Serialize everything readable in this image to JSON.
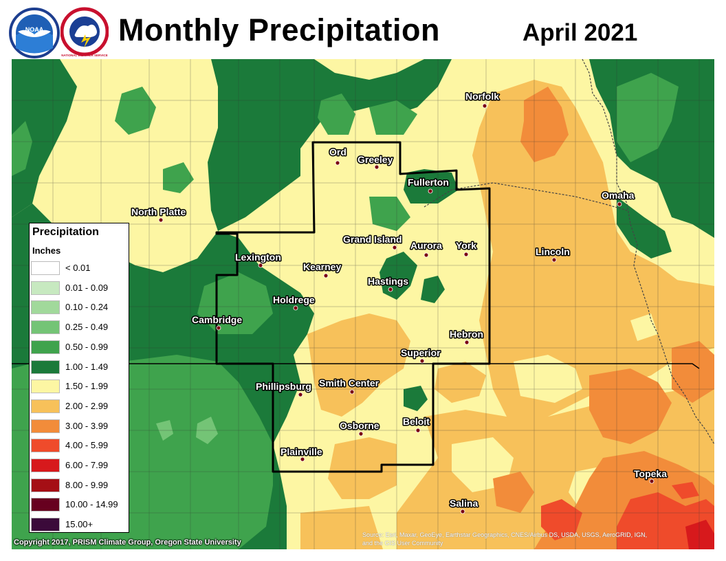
{
  "header": {
    "title": "Monthly Precipitation",
    "month": "April 2021",
    "noaa_logo_text": "NOAA",
    "nws_logo_text": "NATIONAL WEATHER SERVICE"
  },
  "legend": {
    "title": "Precipitation",
    "units": "Inches",
    "classes": [
      {
        "label": "< 0.01",
        "color": "#ffffff"
      },
      {
        "label": "0.01 - 0.09",
        "color": "#c7e9c0"
      },
      {
        "label": "0.10 - 0.24",
        "color": "#a1d99b"
      },
      {
        "label": "0.25 - 0.49",
        "color": "#74c476"
      },
      {
        "label": "0.50 - 0.99",
        "color": "#3fa34d"
      },
      {
        "label": "1.00 - 1.49",
        "color": "#1b7a3a"
      },
      {
        "label": "1.50 - 1.99",
        "color": "#fdf6a3"
      },
      {
        "label": "2.00 - 2.99",
        "color": "#f7c15a"
      },
      {
        "label": "3.00 - 3.99",
        "color": "#f28c3a"
      },
      {
        "label": "4.00 - 5.99",
        "color": "#ef4b2b"
      },
      {
        "label": "6.00 - 7.99",
        "color": "#d7191c"
      },
      {
        "label": "8.00 - 9.99",
        "color": "#a50f15"
      },
      {
        "label": "10.00 - 14.99",
        "color": "#67001f"
      },
      {
        "label": "15.00+",
        "color": "#3b0a3a"
      }
    ]
  },
  "cities": [
    {
      "name": "Norfolk"
    },
    {
      "name": "Ord"
    },
    {
      "name": "Greeley"
    },
    {
      "name": "Fullerton"
    },
    {
      "name": "Omaha"
    },
    {
      "name": "North Platte"
    },
    {
      "name": "Grand Island"
    },
    {
      "name": "Aurora"
    },
    {
      "name": "York"
    },
    {
      "name": "Lincoln"
    },
    {
      "name": "Lexington"
    },
    {
      "name": "Kearney"
    },
    {
      "name": "Hastings"
    },
    {
      "name": "Holdrege"
    },
    {
      "name": "Cambridge"
    },
    {
      "name": "Hebron"
    },
    {
      "name": "Superior"
    },
    {
      "name": "Phillipsburg"
    },
    {
      "name": "Smith Center"
    },
    {
      "name": "Beloit"
    },
    {
      "name": "Osborne"
    },
    {
      "name": "Plainville"
    },
    {
      "name": "Topeka"
    },
    {
      "name": "Salina"
    }
  ],
  "footer": {
    "copyright": "Copyright 2017, PRISM Climate Group, Oregon State University",
    "source_line1": "Source: Esri, Maxar, GeoEye, Earthstar Geographics, CNES/Airbus DS, USDA, USGS, AeroGRID, IGN,",
    "source_line2": "and the GIS User Community"
  }
}
